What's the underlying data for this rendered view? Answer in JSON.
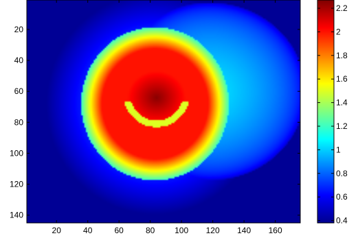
{
  "chart_data": {
    "type": "heatmap",
    "title": "",
    "xlabel": "",
    "ylabel": "",
    "x_range": [
      1,
      176
    ],
    "y_range": [
      1,
      145
    ],
    "y_reversed": true,
    "x_ticks": [
      "20",
      "40",
      "60",
      "80",
      "100",
      "120",
      "140",
      "160"
    ],
    "y_ticks": [
      "20",
      "40",
      "60",
      "80",
      "100",
      "120",
      "140"
    ],
    "colorbar": {
      "colormap": "jet",
      "range": [
        0.38,
        2.27
      ],
      "ticks": [
        "0.4",
        "0.6",
        "0.8",
        "1",
        "1.2",
        "1.4",
        "1.6",
        "1.8",
        "2",
        "2.2"
      ]
    },
    "features": [
      {
        "kind": "peak",
        "center": [
          84,
          64
        ],
        "value": 2.25
      },
      {
        "kind": "hot-ring",
        "center": [
          83,
          68
        ],
        "radius": 38,
        "value": 2.0
      },
      {
        "kind": "cool-halo",
        "center": [
          118,
          60
        ],
        "value": 1.05
      },
      {
        "kind": "background",
        "value": 0.42
      }
    ]
  }
}
